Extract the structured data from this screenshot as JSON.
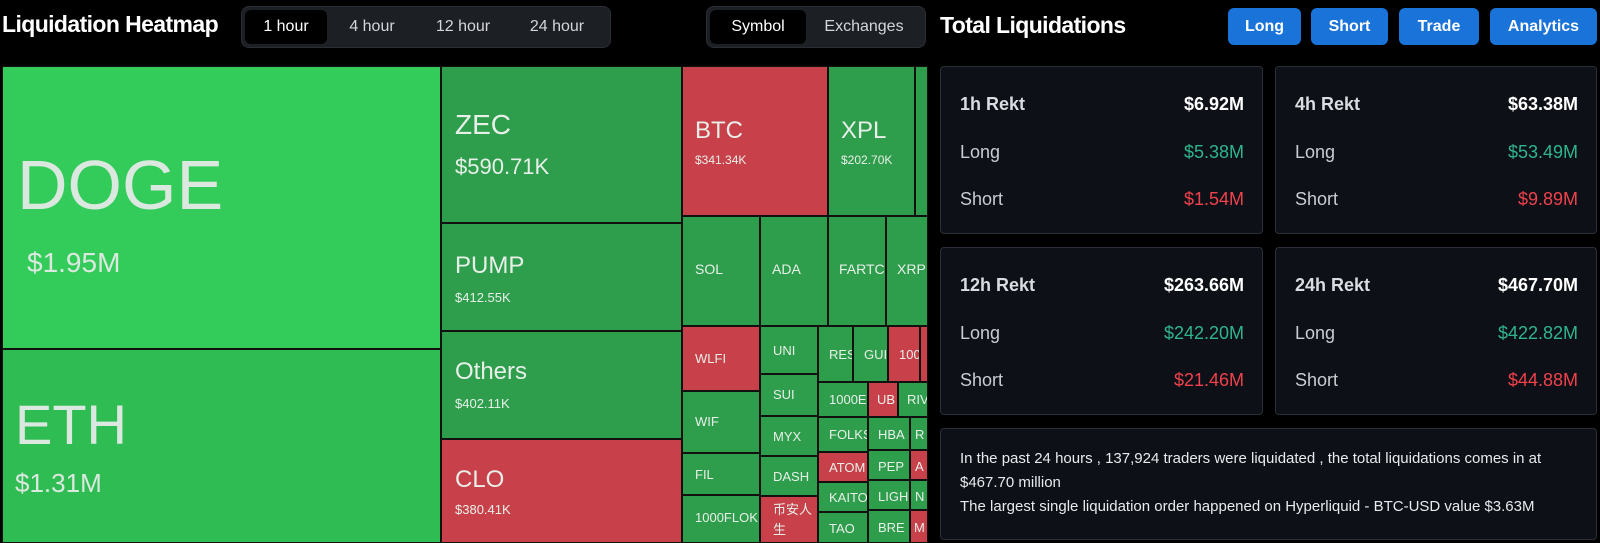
{
  "heatmap": {
    "title": "Liquidation Heatmap",
    "time_tabs": [
      "1 hour",
      "4 hour",
      "12 hour",
      "24 hour"
    ],
    "active_time_tab": "1 hour",
    "view_tabs": [
      "Symbol",
      "Exchanges"
    ],
    "active_view_tab": "Symbol",
    "tiles": [
      {
        "symbol": "DOGE",
        "value": "$1.95M",
        "color": "#33cc5a"
      },
      {
        "symbol": "ETH",
        "value": "$1.31M",
        "color": "#2fbc52"
      },
      {
        "symbol": "ZEC",
        "value": "$590.71K",
        "color": "#2e9e4c"
      },
      {
        "symbol": "PUMP",
        "value": "$412.55K",
        "color": "#2e9e4c"
      },
      {
        "symbol": "Others",
        "value": "$402.11K",
        "color": "#2e9e4c"
      },
      {
        "symbol": "CLO",
        "value": "$380.41K",
        "color": "#c8414a"
      },
      {
        "symbol": "BTC",
        "value": "$341.34K",
        "color": "#c8414a"
      },
      {
        "symbol": "XPL",
        "value": "$202.70K",
        "color": "#2e9e4c"
      },
      {
        "symbol": "SOL",
        "value": "",
        "color": "#2e9e4c"
      },
      {
        "symbol": "ADA",
        "value": "",
        "color": "#2e9e4c"
      },
      {
        "symbol": "FARTCO",
        "value": "",
        "color": "#2e9e4c"
      },
      {
        "symbol": "XRP",
        "value": "",
        "color": "#2e9e4c"
      },
      {
        "symbol": "WLFI",
        "value": "",
        "color": "#c8414a"
      },
      {
        "symbol": "UNI",
        "value": "",
        "color": "#2e9e4c"
      },
      {
        "symbol": "RES",
        "value": "",
        "color": "#2e9e4c"
      },
      {
        "symbol": "GUI",
        "value": "",
        "color": "#2e9e4c"
      },
      {
        "symbol": "100",
        "value": "",
        "color": "#c8414a"
      },
      {
        "symbol": "SUI",
        "value": "",
        "color": "#2e9e4c"
      },
      {
        "symbol": "1000E",
        "value": "",
        "color": "#2e9e4c"
      },
      {
        "symbol": "UB",
        "value": "",
        "color": "#c8414a"
      },
      {
        "symbol": "RIV",
        "value": "",
        "color": "#2e9e4c"
      },
      {
        "symbol": "WIF",
        "value": "",
        "color": "#2e9e4c"
      },
      {
        "symbol": "MYX",
        "value": "",
        "color": "#2e9e4c"
      },
      {
        "symbol": "FOLKS",
        "value": "",
        "color": "#2e9e4c"
      },
      {
        "symbol": "HBA",
        "value": "",
        "color": "#2e9e4c"
      },
      {
        "symbol": "R",
        "value": "",
        "color": "#2e9e4c"
      },
      {
        "symbol": "FIL",
        "value": "",
        "color": "#2e9e4c"
      },
      {
        "symbol": "DASH",
        "value": "",
        "color": "#2e9e4c"
      },
      {
        "symbol": "ATOM",
        "value": "",
        "color": "#c8414a"
      },
      {
        "symbol": "PEP",
        "value": "",
        "color": "#2e9e4c"
      },
      {
        "symbol": "A",
        "value": "",
        "color": "#c8414a"
      },
      {
        "symbol": "1000FLOK",
        "value": "",
        "color": "#2e9e4c"
      },
      {
        "symbol": "币安人生",
        "value": "",
        "color": "#c8414a"
      },
      {
        "symbol": "KAITO",
        "value": "",
        "color": "#2e9e4c"
      },
      {
        "symbol": "LIGH",
        "value": "",
        "color": "#2e9e4c"
      },
      {
        "symbol": "N",
        "value": "",
        "color": "#2e9e4c"
      },
      {
        "symbol": "TAO",
        "value": "",
        "color": "#2e9e4c"
      },
      {
        "symbol": "BRE",
        "value": "",
        "color": "#2e9e4c"
      },
      {
        "symbol": "M",
        "value": "",
        "color": "#c8414a"
      }
    ]
  },
  "liquidations": {
    "title": "Total Liquidations",
    "buttons": [
      "Long",
      "Short",
      "Trade",
      "Analytics"
    ],
    "cards": [
      {
        "period": "1h Rekt",
        "total": "$6.92M",
        "long_label": "Long",
        "long": "$5.38M",
        "short_label": "Short",
        "short": "$1.54M"
      },
      {
        "period": "4h Rekt",
        "total": "$63.38M",
        "long_label": "Long",
        "long": "$53.49M",
        "short_label": "Short",
        "short": "$9.89M"
      },
      {
        "period": "12h Rekt",
        "total": "$263.66M",
        "long_label": "Long",
        "long": "$242.20M",
        "short_label": "Short",
        "short": "$21.46M"
      },
      {
        "period": "24h Rekt",
        "total": "$467.70M",
        "long_label": "Long",
        "long": "$422.82M",
        "short_label": "Short",
        "short": "$44.88M"
      }
    ],
    "summary_line1": "In the past 24 hours , 137,924 traders were liquidated , the total liquidations comes in at $467.70 million",
    "summary_line2": "The largest single liquidation order happened on Hyperliquid - BTC-USD value $3.63M"
  },
  "colors": {
    "accent_blue": "#1a73d8",
    "long_green": "#2fb58e",
    "short_red": "#f0414c",
    "tile_green_bright": "#33cc5a",
    "tile_green_mid": "#2e9e4c",
    "tile_red": "#c8414a"
  }
}
